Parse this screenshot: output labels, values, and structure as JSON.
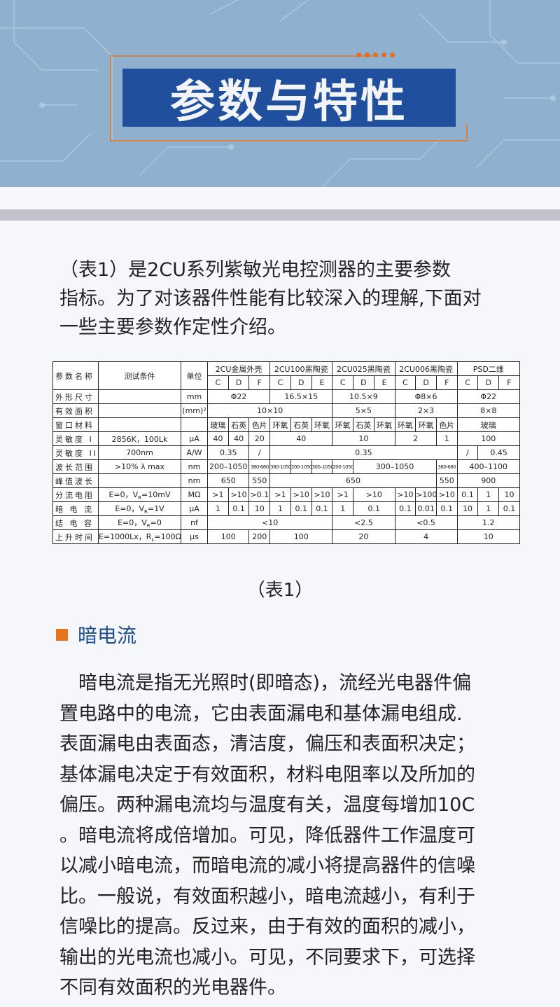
{
  "banner": {
    "title": "参数与特性",
    "colors": {
      "background": "#8fb1cf",
      "title_box": "#1f4f9d",
      "accent": "#d9823f"
    }
  },
  "intro": {
    "lines": [
      "（表1）是2CU系列紫敏光电控测器的主要参数",
      "指标。为了对该器件性能有比较深入的理解,下面对",
      "一些主要参数作定性介绍。"
    ]
  },
  "table": {
    "headers": {
      "param": "参数名称",
      "condition": "测试条件",
      "unit": "单位",
      "groups": [
        "2CU金属外壳",
        "2CU100黑陶瓷",
        "2CU025黑陶瓷",
        "2CU006黑陶瓷",
        "PSD二维"
      ],
      "subcols": [
        "C",
        "D",
        "F",
        "C",
        "D",
        "E",
        "C",
        "D",
        "E",
        "C",
        "D",
        "F",
        "C",
        "D",
        "F"
      ]
    },
    "rows": [
      {
        "name": "外形尺寸",
        "cond": "",
        "unit": "mm",
        "cells": [
          [
            "Φ22",
            3
          ],
          [
            "16.5×15",
            3
          ],
          [
            "10.5×9",
            3
          ],
          [
            "Φ8×6",
            3
          ],
          [
            "Φ22",
            3
          ]
        ]
      },
      {
        "name": "有效面积",
        "cond": "",
        "unit": "(mm)²",
        "cells": [
          [
            "10×10",
            6
          ],
          [
            "5×5",
            3
          ],
          [
            "2×3",
            3
          ],
          [
            "8×8",
            3
          ]
        ]
      },
      {
        "name": "窗口材料",
        "cond": "",
        "unit": "",
        "cells": [
          [
            "玻璃",
            1
          ],
          [
            "石英",
            1
          ],
          [
            "色片",
            1
          ],
          [
            "环氧",
            1
          ],
          [
            "石英",
            1
          ],
          [
            "环氧",
            1
          ],
          [
            "环氧",
            1
          ],
          [
            "石英",
            1
          ],
          [
            "环氧",
            1
          ],
          [
            "环氧",
            1
          ],
          [
            "环氧",
            1
          ],
          [
            "色片",
            1
          ],
          [
            "玻璃",
            3
          ]
        ]
      },
      {
        "name": "灵敏度 I",
        "cond": "2856K，100Lk",
        "unit": "μA",
        "cells": [
          [
            "40",
            1
          ],
          [
            "40",
            1
          ],
          [
            "20",
            1
          ],
          [
            "40",
            3
          ],
          [
            "10",
            3
          ],
          [
            "2",
            2
          ],
          [
            "1",
            1
          ],
          [
            "100",
            3
          ]
        ]
      },
      {
        "name": "灵敏度 II",
        "cond": "700nm",
        "unit": "A/W",
        "cells": [
          [
            "0.35",
            2
          ],
          [
            "/",
            1
          ],
          [
            "0.35",
            9
          ],
          [
            "/",
            1
          ],
          [
            "0.45",
            3
          ]
        ]
      },
      {
        "name": "波长范围",
        "cond": ">10% λ max",
        "unit": "nm",
        "cells": [
          [
            "200–1050",
            2
          ],
          [
            "380-680",
            1
          ],
          [
            "380-1050",
            1
          ],
          [
            "200-1050",
            1
          ],
          [
            "300–1050",
            1
          ],
          [
            "200-1050",
            1
          ],
          [
            "300–1050",
            4
          ],
          [
            "380-680",
            1
          ],
          [
            "400–1100",
            3
          ]
        ]
      },
      {
        "name": "峰值波长",
        "cond": "",
        "unit": "nm",
        "cells": [
          [
            "650",
            2
          ],
          [
            "550",
            1
          ],
          [
            "650",
            8
          ],
          [
            "550",
            1
          ],
          [
            "900",
            3
          ]
        ]
      },
      {
        "name": "分流电阻",
        "cond": "E=0，V_R=10mV",
        "unit": "MΩ",
        "cells": [
          [
            ">1",
            1
          ],
          [
            ">10",
            1
          ],
          [
            ">0.1",
            1
          ],
          [
            ">1",
            1
          ],
          [
            ">10",
            1
          ],
          [
            ">10",
            1
          ],
          [
            ">1",
            1
          ],
          [
            ">10",
            2
          ],
          [
            ">10",
            1
          ],
          [
            ">100",
            1
          ],
          [
            ">10",
            1
          ],
          [
            "0.1",
            1
          ],
          [
            "1",
            1
          ],
          [
            "10",
            1
          ]
        ]
      },
      {
        "name": "暗 电 流",
        "cond": "E=0，V_R=1V",
        "unit": "μA",
        "cells": [
          [
            "1",
            1
          ],
          [
            "0.1",
            1
          ],
          [
            "10",
            1
          ],
          [
            "1",
            1
          ],
          [
            "0.1",
            1
          ],
          [
            "0.1",
            1
          ],
          [
            "1",
            1
          ],
          [
            "0.1",
            2
          ],
          [
            "0.1",
            1
          ],
          [
            "0.01",
            1
          ],
          [
            "0.1",
            1
          ],
          [
            "10",
            1
          ],
          [
            "1",
            1
          ],
          [
            "0.1",
            1
          ]
        ]
      },
      {
        "name": "结 电 容",
        "cond": "E=0，V_R=0",
        "unit": "nf",
        "cells": [
          [
            "<10",
            6
          ],
          [
            "<2.5",
            3
          ],
          [
            "<0.5",
            3
          ],
          [
            "1.2",
            3
          ]
        ]
      },
      {
        "name": "上升时间",
        "cond": "E=1000Lx，R_L=100Ω",
        "unit": "μs",
        "cells": [
          [
            "100",
            2
          ],
          [
            "200",
            1
          ],
          [
            "100",
            3
          ],
          [
            "20",
            3
          ],
          [
            "4",
            3
          ],
          [
            "10",
            3
          ]
        ]
      }
    ]
  },
  "caption": "（表1）",
  "section": {
    "heading": "暗电流",
    "marker_color": "#e8731e"
  },
  "body": {
    "lines": [
      "　暗电流是指无光照时(即暗态)，流经光电器件偏",
      "置电路中的电流，它由表面漏电和基体漏电组成.",
      "表面漏电由表面态，清洁度，偏压和表面积决定；",
      "基体漏电决定于有效面积，材料电阻率以及所加的",
      "偏压。两种漏电流均与温度有关，温度每增加10C",
      "。暗电流将成倍增加。可见，降低器件工作温度可",
      "以减小暗电流，而暗电流的减小将提高器件的信噪",
      "比。一般说，有效面积越小，暗电流越小，有利于",
      "信噪比的提高。反过来，由于有效的面积的减小，",
      "输出的光电流也减小。可见，不同要求下，可选择",
      "不同有效面积的光电器件。"
    ]
  }
}
